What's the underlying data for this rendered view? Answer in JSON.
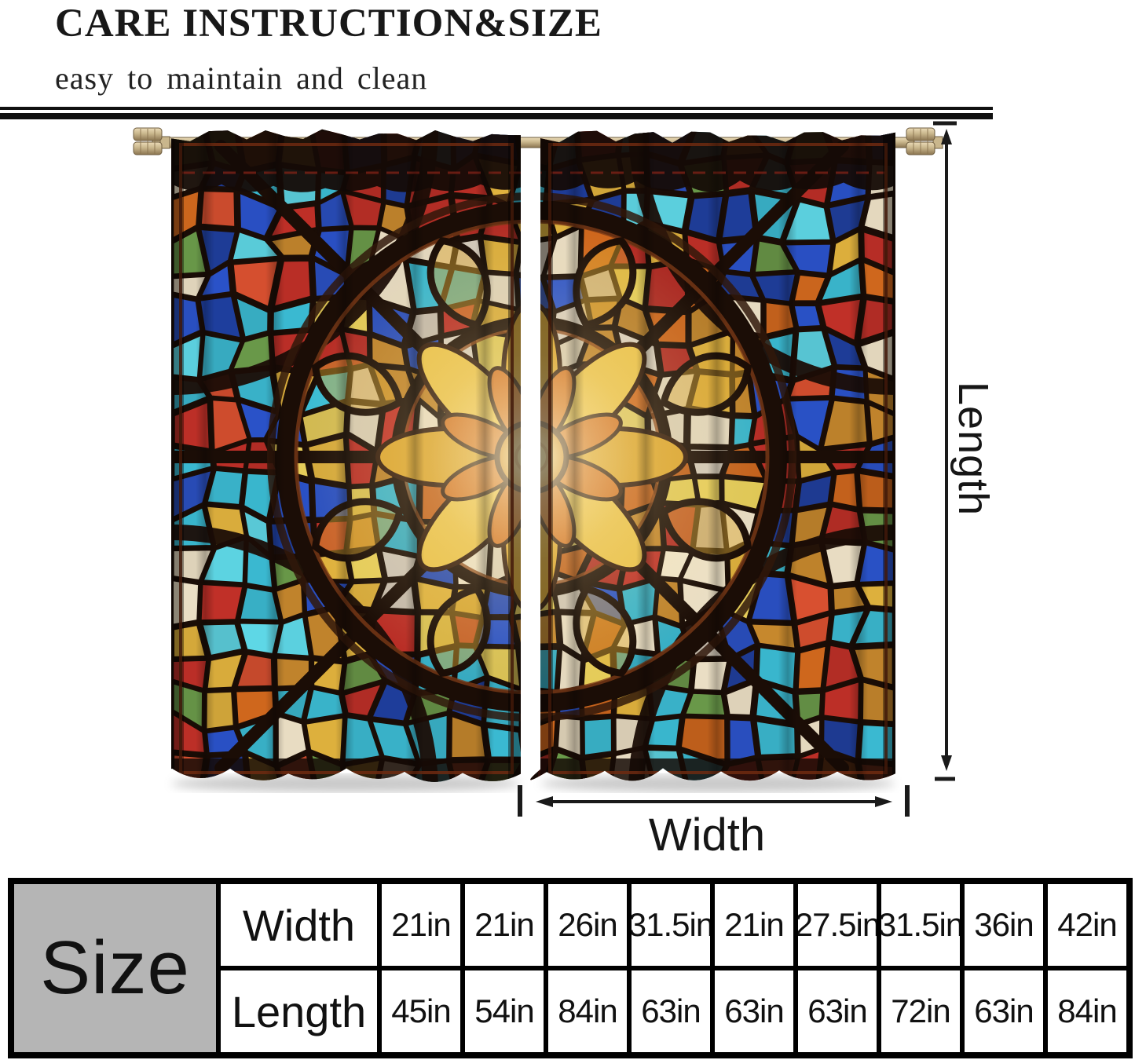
{
  "header": {
    "title": "CARE INSTRUCTION&SIZE",
    "subtitle": "easy to maintain and clean"
  },
  "diagram": {
    "length_label": "Length",
    "width_label": "Width",
    "arrow_color": "#1a1a1a"
  },
  "curtain": {
    "rod_colors": [
      "#ecdcb8",
      "#c9b68c",
      "#8a7450"
    ],
    "palette": {
      "lead": "#1b0d06",
      "lead_highlight": "#7a3a16",
      "background": "#190d08",
      "frame_red": "#6e2a10",
      "ornament_red": "#8a2418",
      "flower_gold": "#e8c049",
      "flower_amber": "#d9a32e",
      "flower_orange": "#cf6f22",
      "center_gold": "#f2cf5c",
      "zones": {
        "inner": [
          "#e8cf5a",
          "#e0b23e",
          "#efe3c8",
          "#d2691e",
          "#c98a2e",
          "#f0d868",
          "#efe3c8"
        ],
        "mid": [
          "#c98a2e",
          "#e0b23e",
          "#efe3c8",
          "#3bbcd4",
          "#c03028",
          "#d2691e",
          "#d9cfc0",
          "#e8cf5a",
          "#2a52c8",
          "#e0b23e"
        ],
        "outer": [
          "#3bbcd4",
          "#2a52c8",
          "#c03028",
          "#c98a2e",
          "#efe3c8",
          "#5ed7e6",
          "#1f3f9f",
          "#d85030",
          "#e0b23e",
          "#6a9a4a",
          "#d2691e",
          "#3bbcd4"
        ]
      }
    }
  },
  "size_table": {
    "corner_label": "Size",
    "rows": [
      {
        "label": "Width",
        "values": [
          "21in",
          "21in",
          "26in",
          "31.5in",
          "21in",
          "27.5in",
          "31.5in",
          "36in",
          "42in"
        ]
      },
      {
        "label": "Length",
        "values": [
          "45in",
          "54in",
          "84in",
          "63in",
          "63in",
          "63in",
          "72in",
          "63in",
          "84in"
        ]
      }
    ]
  }
}
